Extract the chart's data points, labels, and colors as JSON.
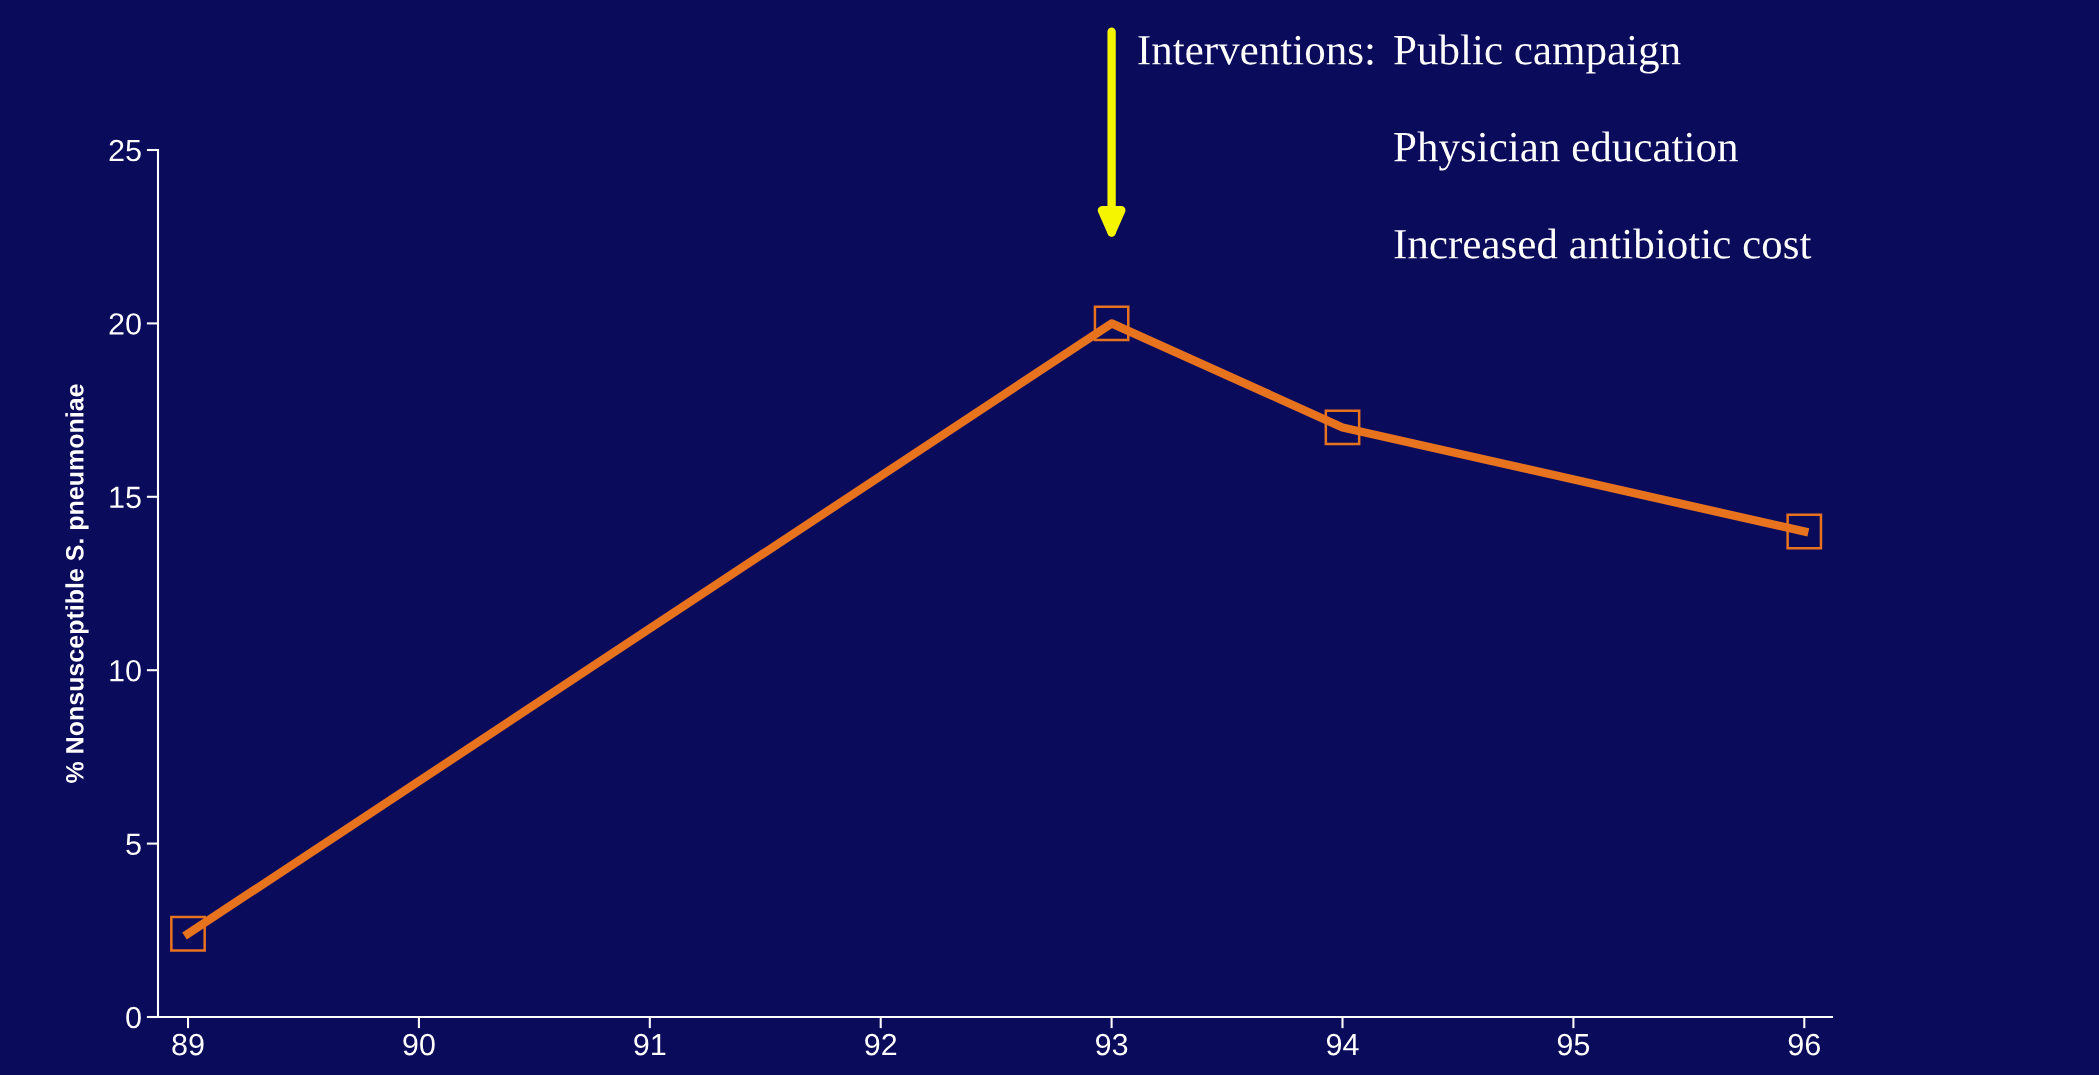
{
  "chart_data": {
    "type": "line",
    "ylabel": "% Nonsusceptible S. pneumoniae",
    "x": [
      89,
      93,
      94,
      96
    ],
    "series": [
      {
        "color": "#e8731e",
        "values": [
          2.4,
          20,
          17,
          14
        ]
      }
    ],
    "marker": "square",
    "line_style": "solid",
    "xlim": [
      88.87,
      96.12
    ],
    "xticks": [
      89,
      90,
      91,
      92,
      93,
      94,
      95,
      96
    ],
    "ylim": [
      0,
      25
    ],
    "yticks": [
      0,
      5,
      10,
      15,
      20,
      25
    ],
    "grid": false,
    "annotations": [
      "Interventions:",
      "Public campaign",
      "Physician education",
      "Increased antibiotic cost"
    ]
  }
}
